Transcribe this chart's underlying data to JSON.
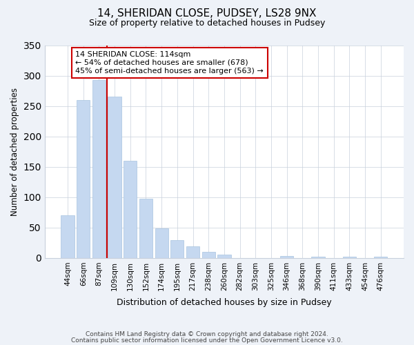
{
  "title": "14, SHERIDAN CLOSE, PUDSEY, LS28 9NX",
  "subtitle": "Size of property relative to detached houses in Pudsey",
  "xlabel": "Distribution of detached houses by size in Pudsey",
  "ylabel": "Number of detached properties",
  "bar_labels": [
    "44sqm",
    "66sqm",
    "87sqm",
    "109sqm",
    "130sqm",
    "152sqm",
    "174sqm",
    "195sqm",
    "217sqm",
    "238sqm",
    "260sqm",
    "282sqm",
    "303sqm",
    "325sqm",
    "346sqm",
    "368sqm",
    "390sqm",
    "411sqm",
    "433sqm",
    "454sqm",
    "476sqm"
  ],
  "bar_values": [
    70,
    260,
    293,
    265,
    160,
    97,
    49,
    29,
    19,
    10,
    6,
    0,
    0,
    0,
    3,
    0,
    2,
    0,
    2,
    0,
    2
  ],
  "bar_color": "#c5d8f0",
  "bar_edge_color": "#a8c4e0",
  "vline_x_index": 3,
  "vline_color": "#cc0000",
  "annotation_title": "14 SHERIDAN CLOSE: 114sqm",
  "annotation_line1": "← 54% of detached houses are smaller (678)",
  "annotation_line2": "45% of semi-detached houses are larger (563) →",
  "annotation_box_color": "#ffffff",
  "annotation_box_edge": "#cc0000",
  "ylim": [
    0,
    350
  ],
  "yticks": [
    0,
    50,
    100,
    150,
    200,
    250,
    300,
    350
  ],
  "footnote1": "Contains HM Land Registry data © Crown copyright and database right 2024.",
  "footnote2": "Contains public sector information licensed under the Open Government Licence v3.0.",
  "bg_color": "#eef2f8",
  "plot_bg_color": "#ffffff",
  "grid_color": "#c8d0dc"
}
